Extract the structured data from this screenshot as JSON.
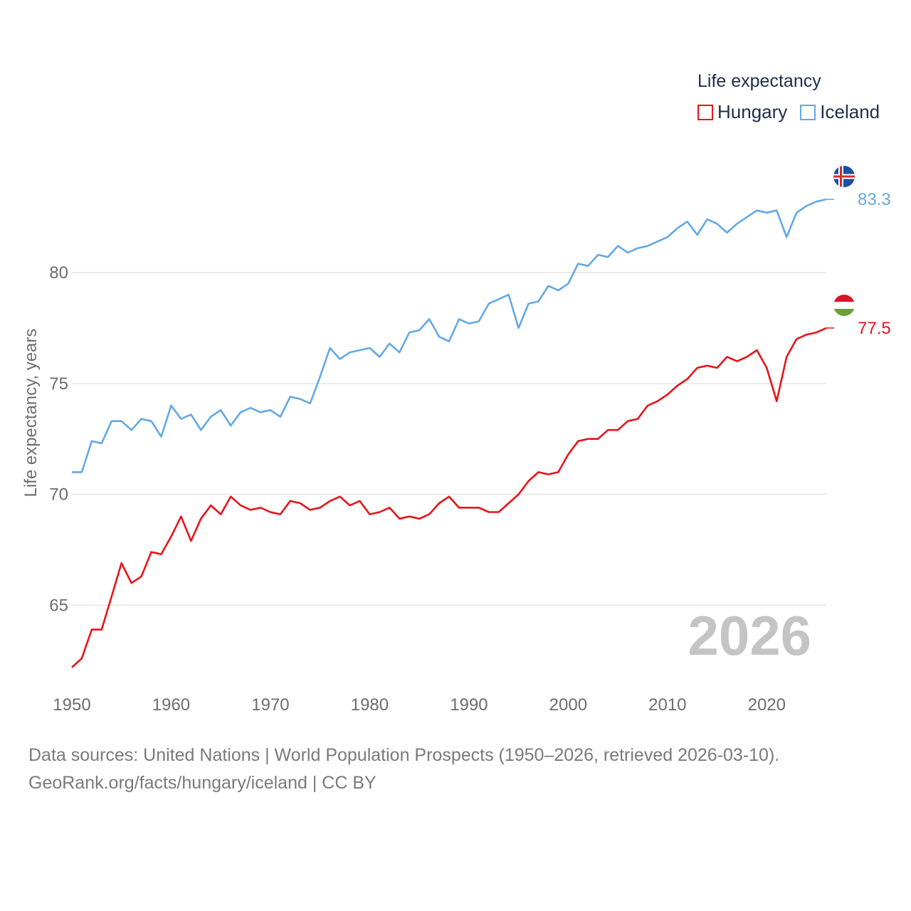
{
  "legend": {
    "title": "Life expectancy",
    "items": [
      {
        "name": "Hungary",
        "color": "#e8131a"
      },
      {
        "name": "Iceland",
        "color": "#64a8e4"
      }
    ]
  },
  "source": {
    "line1": "Data sources: United Nations | World Population Prospects (1950–2026, retrieved 2026-03-10).",
    "line2": "GeoRank.org/facts/hungary/iceland | CC BY"
  },
  "chart_data": {
    "type": "line",
    "title": "Life expectancy",
    "xlabel": "",
    "ylabel": "Life expectancy, years",
    "xlim": [
      1950,
      2026
    ],
    "ylim": [
      61,
      86
    ],
    "xticks": [
      1950,
      1960,
      1970,
      1980,
      1990,
      2000,
      2010,
      2020
    ],
    "yticks": [
      65,
      70,
      75,
      80
    ],
    "year_label": "2026",
    "x": [
      1950,
      1951,
      1952,
      1953,
      1954,
      1955,
      1956,
      1957,
      1958,
      1959,
      1960,
      1961,
      1962,
      1963,
      1964,
      1965,
      1966,
      1967,
      1968,
      1969,
      1970,
      1971,
      1972,
      1973,
      1974,
      1975,
      1976,
      1977,
      1978,
      1979,
      1980,
      1981,
      1982,
      1983,
      1984,
      1985,
      1986,
      1987,
      1988,
      1989,
      1990,
      1991,
      1992,
      1993,
      1994,
      1995,
      1996,
      1997,
      1998,
      1999,
      2000,
      2001,
      2002,
      2003,
      2004,
      2005,
      2006,
      2007,
      2008,
      2009,
      2010,
      2011,
      2012,
      2013,
      2014,
      2015,
      2016,
      2017,
      2018,
      2019,
      2020,
      2021,
      2022,
      2023,
      2024,
      2025,
      2026
    ],
    "series": [
      {
        "name": "Hungary",
        "color": "#e8131a",
        "end_label": "77.5",
        "values": [
          62.2,
          62.6,
          63.9,
          63.9,
          65.4,
          66.9,
          66.0,
          66.3,
          67.4,
          67.3,
          68.1,
          69.0,
          67.9,
          68.9,
          69.5,
          69.1,
          69.9,
          69.5,
          69.3,
          69.4,
          69.2,
          69.1,
          69.7,
          69.6,
          69.3,
          69.4,
          69.7,
          69.9,
          69.5,
          69.7,
          69.1,
          69.2,
          69.4,
          68.9,
          69.0,
          68.9,
          69.1,
          69.6,
          69.9,
          69.4,
          69.4,
          69.4,
          69.2,
          69.2,
          69.6,
          70.0,
          70.6,
          71.0,
          70.9,
          71.0,
          71.8,
          72.4,
          72.5,
          72.5,
          72.9,
          72.9,
          73.3,
          73.4,
          74.0,
          74.2,
          74.5,
          74.9,
          75.2,
          75.7,
          75.8,
          75.7,
          76.2,
          76.0,
          76.2,
          76.5,
          75.7,
          74.2,
          76.2,
          77.0,
          77.2,
          77.3,
          77.5
        ]
      },
      {
        "name": "Iceland",
        "color": "#64a8e4",
        "end_label": "83.3",
        "values": [
          71.0,
          71.0,
          72.4,
          72.3,
          73.3,
          73.3,
          72.9,
          73.4,
          73.3,
          72.6,
          74.0,
          73.4,
          73.6,
          72.9,
          73.5,
          73.8,
          73.1,
          73.7,
          73.9,
          73.7,
          73.8,
          73.5,
          74.4,
          74.3,
          74.1,
          75.3,
          76.6,
          76.1,
          76.4,
          76.5,
          76.6,
          76.2,
          76.8,
          76.4,
          77.3,
          77.4,
          77.9,
          77.1,
          76.9,
          77.9,
          77.7,
          77.8,
          78.6,
          78.8,
          79.0,
          77.5,
          78.6,
          78.7,
          79.4,
          79.2,
          79.5,
          80.4,
          80.3,
          80.8,
          80.7,
          81.2,
          80.9,
          81.1,
          81.2,
          81.4,
          81.6,
          82.0,
          82.3,
          81.7,
          82.4,
          82.2,
          81.8,
          82.2,
          82.5,
          82.8,
          82.7,
          82.8,
          81.6,
          82.7,
          83.0,
          83.2,
          83.3
        ]
      }
    ]
  }
}
